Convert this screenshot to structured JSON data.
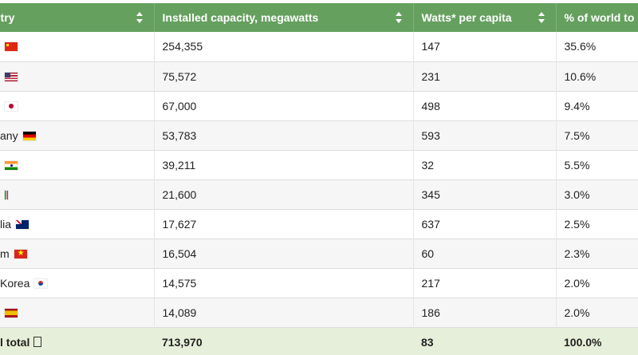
{
  "columns": [
    {
      "label": "ntry"
    },
    {
      "label": "Installed capacity, megawatts"
    },
    {
      "label": "Watts* per capita"
    },
    {
      "label": "% of world to"
    }
  ],
  "rows": [
    {
      "name": "",
      "flag": "china-flag-icon",
      "capacity": "254,355",
      "watts": "147",
      "pct": "35.6%"
    },
    {
      "name": "",
      "flag": "united-states-flag-icon",
      "capacity": "75,572",
      "watts": "231",
      "pct": "10.6%"
    },
    {
      "name": "",
      "flag": "japan-flag-icon",
      "capacity": "67,000",
      "watts": "498",
      "pct": "9.4%"
    },
    {
      "name": "any",
      "flag": "germany-flag-icon",
      "capacity": "53,783",
      "watts": "593",
      "pct": "7.5%"
    },
    {
      "name": "",
      "flag": "india-flag-icon",
      "capacity": "39,211",
      "watts": "32",
      "pct": "5.5%"
    },
    {
      "name": "",
      "flag": "italy-flag-icon",
      "capacity": "21,600",
      "watts": "345",
      "pct": "3.0%"
    },
    {
      "name": "lia",
      "flag": "australia-flag-icon",
      "capacity": "17,627",
      "watts": "637",
      "pct": "2.5%"
    },
    {
      "name": "m",
      "flag": "vietnam-flag-icon",
      "capacity": "16,504",
      "watts": "60",
      "pct": "2.3%"
    },
    {
      "name": "Korea",
      "flag": "south-korea-flag-icon",
      "capacity": "14,575",
      "watts": "217",
      "pct": "2.0%"
    },
    {
      "name": "",
      "flag": "spain-flag-icon",
      "capacity": "14,089",
      "watts": "186",
      "pct": "2.0%"
    }
  ],
  "total": {
    "name": "l total",
    "capacity": "713,970",
    "watts": "83",
    "pct": "100.0%"
  },
  "colors": {
    "header": "#65a05f",
    "total_row": "#e6efd9",
    "alt_row": "#f6f6f6"
  }
}
